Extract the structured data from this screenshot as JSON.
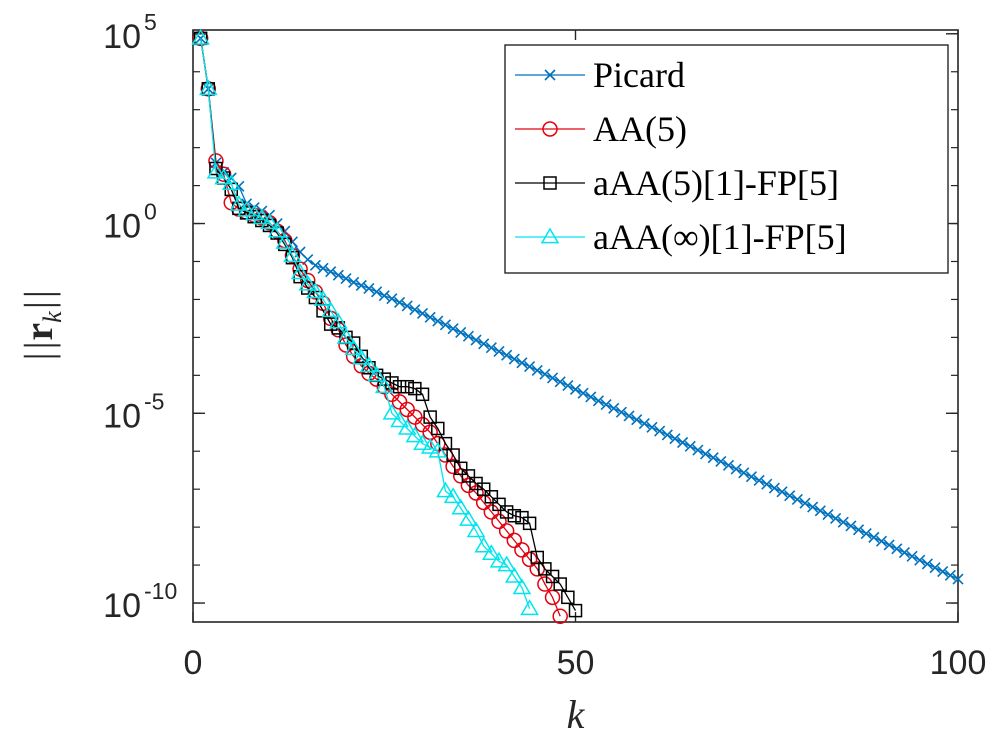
{
  "chart_data": {
    "type": "line",
    "xlabel": "k",
    "ylabel": "||r_k||",
    "ylabel_parts": {
      "bars_left": "||",
      "symbol": "r",
      "subscript": "k",
      "bars_right": "||"
    },
    "yscale": "log",
    "xlim": [
      0,
      100
    ],
    "ylim_exp": [
      -10.5,
      5.1
    ],
    "xticks": [
      {
        "value": 0,
        "label": "0"
      },
      {
        "value": 50,
        "label": "50"
      },
      {
        "value": 100,
        "label": "100"
      }
    ],
    "yticks": [
      {
        "exp": 5,
        "base": "10",
        "sup": "5"
      },
      {
        "exp": 0,
        "base": "10",
        "sup": "0"
      },
      {
        "exp": -5,
        "base": "10",
        "sup": "-5"
      },
      {
        "exp": -10,
        "base": "10",
        "sup": "-10"
      }
    ],
    "grid": false,
    "legend_position": "top-right",
    "series": [
      {
        "name": "Picard",
        "color": "#0072BD",
        "marker": "x",
        "x": [
          1,
          2,
          3,
          4,
          5,
          6,
          7,
          8,
          9,
          10,
          11,
          12,
          13,
          14,
          15,
          16,
          17,
          18,
          19,
          20,
          21,
          22,
          23,
          24,
          25,
          26,
          27,
          28,
          29,
          30,
          31,
          32,
          33,
          34,
          35,
          36,
          37,
          38,
          39,
          40,
          41,
          42,
          43,
          44,
          45,
          46,
          47,
          48,
          49,
          50,
          51,
          52,
          53,
          54,
          55,
          56,
          57,
          58,
          59,
          60,
          61,
          62,
          63,
          64,
          65,
          66,
          67,
          68,
          69,
          70,
          71,
          72,
          73,
          74,
          75,
          76,
          77,
          78,
          79,
          80,
          81,
          82,
          83,
          84,
          85,
          86,
          87,
          88,
          89,
          90,
          91,
          92,
          93,
          94,
          95,
          96,
          97,
          98,
          99,
          100
        ],
        "y_log10": [
          4.88,
          3.55,
          1.6,
          1.35,
          1.2,
          0.98,
          0.52,
          0.42,
          0.33,
          0.22,
          0.0,
          -0.2,
          -0.48,
          -0.75,
          -0.95,
          -1.1,
          -1.18,
          -1.27,
          -1.36,
          -1.45,
          -1.55,
          -1.63,
          -1.71,
          -1.8,
          -1.9,
          -1.98,
          -2.08,
          -2.17,
          -2.27,
          -2.37,
          -2.47,
          -2.57,
          -2.67,
          -2.77,
          -2.87,
          -2.97,
          -3.07,
          -3.17,
          -3.27,
          -3.37,
          -3.47,
          -3.57,
          -3.67,
          -3.77,
          -3.87,
          -3.97,
          -4.07,
          -4.17,
          -4.27,
          -4.37,
          -4.47,
          -4.57,
          -4.67,
          -4.77,
          -4.87,
          -4.97,
          -5.07,
          -5.17,
          -5.27,
          -5.37,
          -5.47,
          -5.57,
          -5.67,
          -5.77,
          -5.87,
          -5.97,
          -6.07,
          -6.17,
          -6.27,
          -6.37,
          -6.47,
          -6.57,
          -6.67,
          -6.77,
          -6.87,
          -6.97,
          -7.07,
          -7.17,
          -7.27,
          -7.37,
          -7.47,
          -7.57,
          -7.67,
          -7.77,
          -7.87,
          -7.97,
          -8.07,
          -8.17,
          -8.27,
          -8.37,
          -8.47,
          -8.57,
          -8.67,
          -8.77,
          -8.87,
          -8.97,
          -9.07,
          -9.17,
          -9.27,
          -9.37
        ]
      },
      {
        "name": "AA(5)",
        "color": "#E3000F",
        "marker": "o",
        "x": [
          1,
          2,
          3,
          4,
          5,
          6,
          7,
          8,
          9,
          10,
          11,
          12,
          13,
          14,
          15,
          16,
          17,
          18,
          19,
          20,
          21,
          22,
          23,
          24,
          25,
          26,
          27,
          28,
          29,
          30,
          31,
          32,
          33,
          34,
          35,
          36,
          37,
          38,
          39,
          40,
          41,
          42,
          43,
          44,
          45,
          46,
          47,
          48
        ],
        "y_log10": [
          4.88,
          3.55,
          1.65,
          1.3,
          0.55,
          0.38,
          0.3,
          0.22,
          0.15,
          0.02,
          -0.2,
          -0.45,
          -0.85,
          -1.2,
          -1.5,
          -1.8,
          -2.1,
          -2.5,
          -2.8,
          -3.2,
          -3.5,
          -3.75,
          -3.95,
          -4.1,
          -4.3,
          -4.5,
          -4.7,
          -4.9,
          -5.1,
          -5.3,
          -5.5,
          -5.8,
          -6.1,
          -6.4,
          -6.65,
          -6.9,
          -7.1,
          -7.35,
          -7.6,
          -7.85,
          -8.1,
          -8.35,
          -8.6,
          -8.85,
          -9.1,
          -9.5,
          -9.85,
          -10.35
        ]
      },
      {
        "name": "aAA(5)[1]-FP[5]",
        "color": "#000000",
        "marker": "square",
        "x": [
          1,
          2,
          3,
          4,
          5,
          6,
          7,
          8,
          9,
          10,
          11,
          12,
          13,
          14,
          15,
          16,
          17,
          18,
          19,
          20,
          21,
          22,
          23,
          24,
          25,
          26,
          27,
          28,
          29,
          30,
          31,
          32,
          33,
          34,
          35,
          36,
          37,
          38,
          39,
          40,
          41,
          42,
          43,
          44,
          45,
          46,
          47,
          48,
          49,
          50
        ],
        "y_log10": [
          4.88,
          3.55,
          1.45,
          1.2,
          0.9,
          0.4,
          0.28,
          0.18,
          0.08,
          -0.05,
          -0.25,
          -0.55,
          -0.9,
          -1.4,
          -1.7,
          -1.95,
          -2.3,
          -2.65,
          -2.75,
          -3.0,
          -3.15,
          -3.5,
          -3.8,
          -4.0,
          -4.1,
          -4.2,
          -4.3,
          -4.3,
          -4.35,
          -4.5,
          -5.1,
          -5.4,
          -5.8,
          -6.1,
          -6.45,
          -6.65,
          -6.85,
          -7.0,
          -7.2,
          -7.4,
          -7.6,
          -7.7,
          -7.75,
          -7.9,
          -8.8,
          -9.1,
          -9.3,
          -9.5,
          -9.85,
          -10.2
        ]
      },
      {
        "name": "aAA(∞)[1]-FP[5]",
        "color": "#00E5EE",
        "marker": "triangle",
        "x": [
          1,
          2,
          3,
          4,
          5,
          6,
          7,
          8,
          9,
          10,
          11,
          12,
          13,
          14,
          15,
          16,
          17,
          18,
          19,
          20,
          21,
          22,
          23,
          24,
          25,
          26,
          27,
          28,
          29,
          30,
          31,
          32,
          33,
          34,
          35,
          36,
          37,
          38,
          39,
          40,
          41,
          42,
          43,
          44
        ],
        "y_log10": [
          4.88,
          3.55,
          1.35,
          1.2,
          1.05,
          0.5,
          0.35,
          0.25,
          0.15,
          0.02,
          -0.2,
          -0.5,
          -0.85,
          -1.3,
          -1.6,
          -1.8,
          -2.0,
          -2.3,
          -2.6,
          -3.0,
          -3.3,
          -3.55,
          -3.75,
          -4.0,
          -4.3,
          -5.0,
          -5.2,
          -5.4,
          -5.6,
          -5.8,
          -5.9,
          -6.0,
          -7.05,
          -7.2,
          -7.5,
          -7.8,
          -8.1,
          -8.5,
          -8.7,
          -8.9,
          -9.0,
          -9.3,
          -9.6,
          -10.15
        ]
      }
    ]
  }
}
